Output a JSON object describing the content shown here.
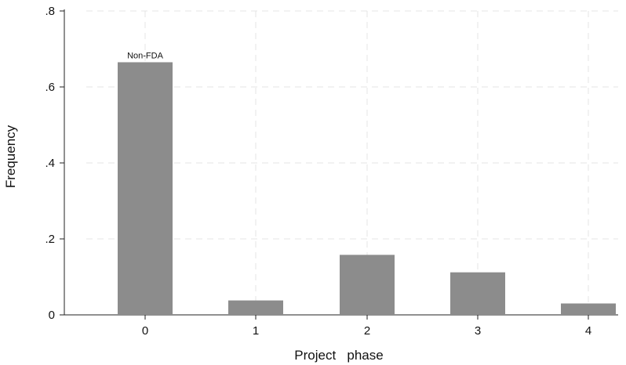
{
  "chart_data": {
    "type": "bar",
    "categories": [
      "0",
      "1",
      "2",
      "3",
      "4"
    ],
    "values": [
      0.665,
      0.038,
      0.158,
      0.112,
      0.03
    ],
    "title": "",
    "xlabel": "Project   phase",
    "ylabel": "Frequency",
    "ylim": [
      0,
      0.8
    ],
    "yticks": [
      0,
      0.2,
      0.4,
      0.6,
      0.8
    ],
    "ytick_labels": [
      "0",
      ".2",
      ".4",
      ".6",
      ".8"
    ],
    "grid": true,
    "bar_color": "#8c8c8c",
    "grid_color": "#e4e4e4",
    "annotations": [
      {
        "category": "0",
        "text": "Non-FDA"
      }
    ]
  }
}
